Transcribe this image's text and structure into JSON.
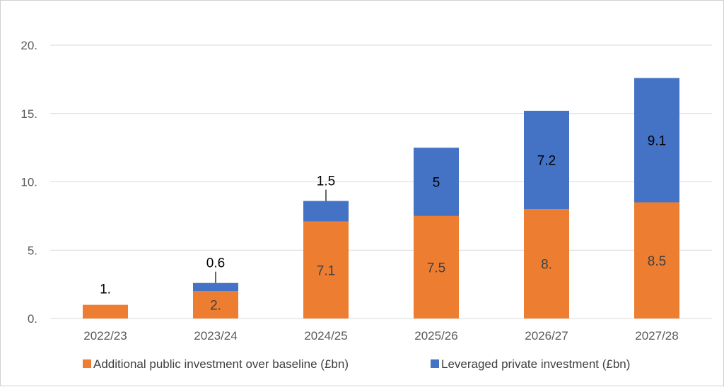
{
  "chart_data": {
    "type": "bar",
    "stacked": true,
    "categories": [
      "2022/23",
      "2023/24",
      "2024/25",
      "2025/26",
      "2026/27",
      "2027/28"
    ],
    "series": [
      {
        "name": "Additional public investment over baseline (£bn)",
        "color": "#ED7D31",
        "values": [
          1.0,
          2.0,
          7.1,
          7.5,
          8.0,
          8.5
        ],
        "labels": [
          "1.",
          "2.",
          "7.1",
          "7.5",
          "8.",
          "8.5"
        ]
      },
      {
        "name": "Leveraged private investment (£bn)",
        "color": "#4472C4",
        "values": [
          0,
          0.6,
          1.5,
          5.0,
          7.2,
          9.1
        ],
        "labels": [
          "",
          "0.6",
          "1.5",
          "5",
          "7.2",
          "9.1"
        ]
      }
    ],
    "y_ticks": [
      "0.",
      "5.",
      "10.",
      "15.",
      "20."
    ],
    "ylim": [
      0,
      20
    ],
    "grid": true,
    "legend_position": "bottom"
  }
}
